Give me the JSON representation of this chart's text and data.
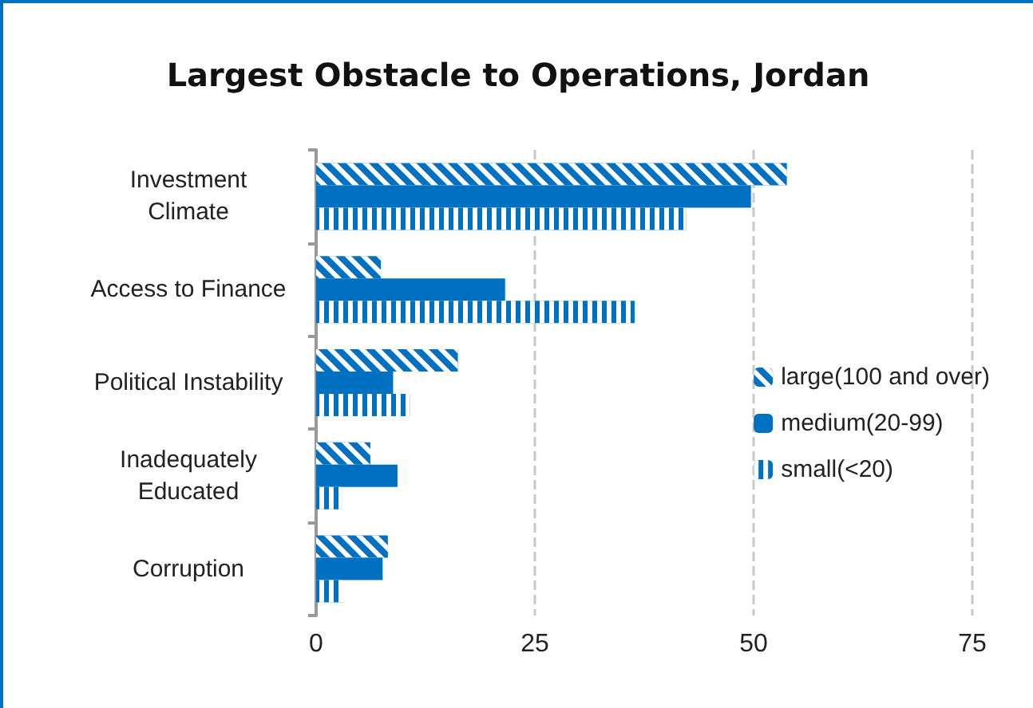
{
  "chart_data": {
    "type": "bar",
    "orientation": "horizontal",
    "title": "Largest Obstacle to Operations, Jordan",
    "categories": [
      "Investment\nClimate",
      "Access to Finance",
      "Political Instability",
      "Inadequately\nEducated",
      "Corruption"
    ],
    "series": [
      {
        "name": "large(100 and over)",
        "color": "#0070c0",
        "values": [
          53.8,
          7.4,
          16.2,
          6.2,
          8.2
        ]
      },
      {
        "name": "medium(20-99)",
        "color": "#0070c0",
        "values": [
          49.7,
          21.6,
          8.8,
          9.3,
          7.6
        ]
      },
      {
        "name": "small(<20)",
        "color": "#0070c0",
        "values": [
          42.3,
          36.4,
          10.7,
          3.0,
          3.1
        ]
      }
    ],
    "xlim": [
      0,
      75
    ],
    "xticks": [
      0,
      25,
      50,
      75
    ],
    "grid": "x",
    "legend": "right"
  }
}
